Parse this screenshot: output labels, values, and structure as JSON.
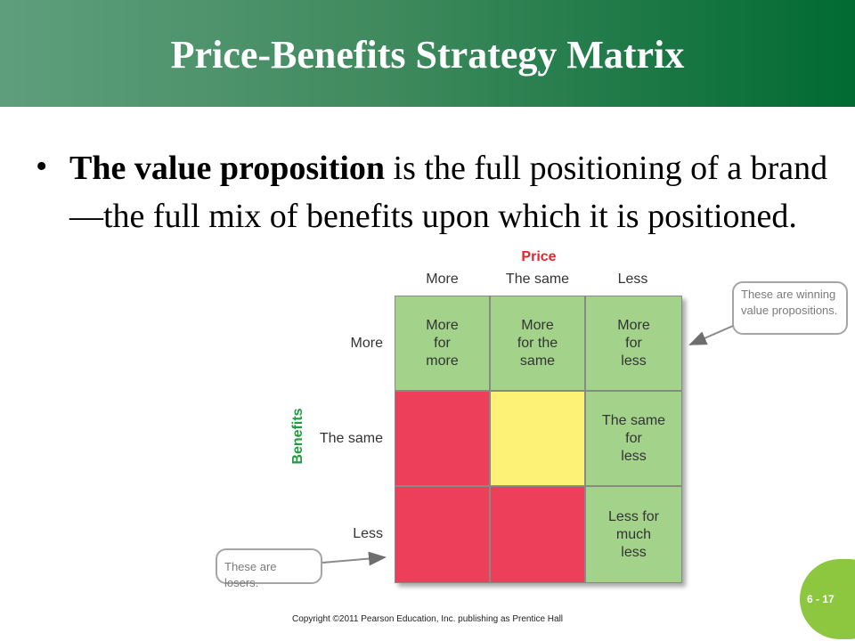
{
  "slide": {
    "title": "Price-Benefits Strategy Matrix",
    "bullet_marker": "•",
    "bullet_bold": "The value proposition",
    "bullet_rest": " is the full positioning of a brand—the full mix of benefits upon which it is positioned.",
    "copyright": "Copyright ©2011 Pearson Education, Inc. publishing as Prentice Hall",
    "page_number": "6 - 17"
  },
  "matrix": {
    "price_label": "Price",
    "benefits_label": "Benefits",
    "columns": [
      "More",
      "The same",
      "Less"
    ],
    "rows": [
      "More",
      "The same",
      "Less"
    ],
    "cells": [
      [
        "More\nfor\nmore",
        "More\nfor the\nsame",
        "More\nfor\nless"
      ],
      [
        "",
        "",
        "The same\nfor\nless"
      ],
      [
        "",
        "",
        "Less for\nmuch\nless"
      ]
    ],
    "cell_colors": [
      [
        "green",
        "green",
        "green"
      ],
      [
        "red",
        "yellow",
        "green"
      ],
      [
        "red",
        "red",
        "green"
      ]
    ]
  },
  "callouts": {
    "winning": "These are winning value propositions.",
    "losers": "These are losers."
  },
  "colors": {
    "header_green": "#016a33",
    "price_red": "#e8232d",
    "benefits_green": "#1e9b3e",
    "cell_green": "#a3d38b",
    "cell_yellow": "#fdf275",
    "cell_red": "#ed3f59",
    "page_tab": "#8dc63f"
  }
}
